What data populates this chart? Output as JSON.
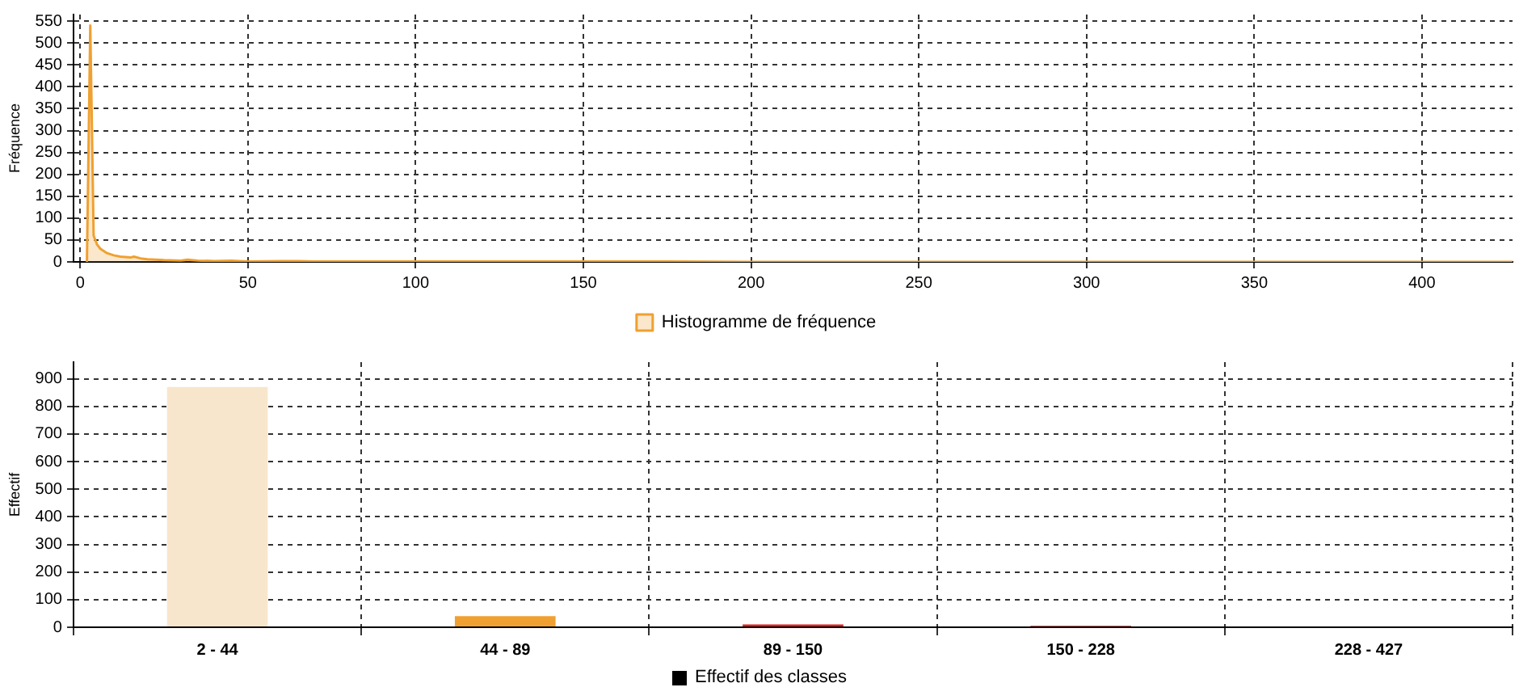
{
  "chart_data": [
    {
      "type": "area",
      "ylabel": "Fréquence",
      "legend": "bottom",
      "grid": true,
      "marker": "none",
      "xlim": [
        -2,
        427
      ],
      "xticks": [
        0,
        50,
        100,
        150,
        200,
        250,
        300,
        350,
        400
      ],
      "ylim": [
        0,
        565
      ],
      "yticks": [
        0,
        50,
        100,
        150,
        200,
        250,
        300,
        350,
        400,
        450,
        500,
        550
      ],
      "series": [
        {
          "name": "Histogramme de fréquence",
          "color": "#f0a030",
          "x": [
            2,
            3,
            4,
            5,
            6,
            8,
            10,
            12,
            15,
            16,
            18,
            20,
            25,
            30,
            32,
            35,
            40,
            45,
            50,
            60,
            65,
            70,
            100,
            150,
            175,
            200,
            427
          ],
          "values": [
            0,
            540,
            60,
            40,
            30,
            20,
            15,
            12,
            10,
            12,
            8,
            6,
            4,
            3,
            5,
            3,
            2,
            3,
            1,
            2,
            2,
            1,
            1,
            1,
            1,
            0,
            0
          ]
        }
      ]
    },
    {
      "type": "bar",
      "ylabel": "Effectif",
      "legend": "bottom",
      "grid": true,
      "categories": [
        "2 - 44",
        "44 - 89",
        "89 - 150",
        "150 - 228",
        "228 - 427"
      ],
      "ylim": [
        0,
        960
      ],
      "yticks": [
        0,
        100,
        200,
        300,
        400,
        500,
        600,
        700,
        800,
        900
      ],
      "series": [
        {
          "name": "Effectif des classes",
          "color": "#000000",
          "colors": [
            "#f8e6cc",
            "#f0a030",
            "#e02020",
            "#c02020",
            "#c02020"
          ],
          "values": [
            870,
            40,
            10,
            5,
            0
          ]
        }
      ]
    }
  ]
}
